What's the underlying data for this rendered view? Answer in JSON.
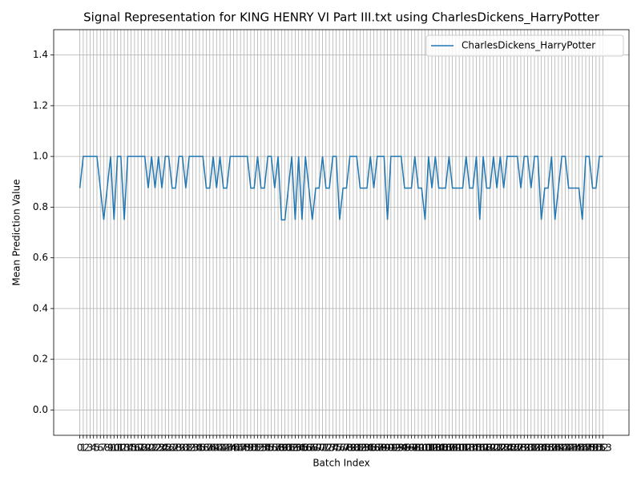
{
  "chart_data": {
    "type": "line",
    "title": "Signal Representation for KING HENRY VI Part III.txt using CharlesDickens_HarryPotter",
    "x_label": "Batch Index",
    "y_label": "Mean Prediction Value",
    "x": [
      0,
      1,
      2,
      3,
      4,
      5,
      6,
      7,
      8,
      9,
      10,
      11,
      12,
      13,
      14,
      15,
      16,
      17,
      18,
      19,
      20,
      21,
      22,
      23,
      24,
      25,
      26,
      27,
      28,
      29,
      30,
      31,
      32,
      33,
      34,
      35,
      36,
      37,
      38,
      39,
      40,
      41,
      42,
      43,
      44,
      45,
      46,
      47,
      48,
      49,
      50,
      51,
      52,
      53,
      54,
      55,
      56,
      57,
      58,
      59,
      60,
      61,
      62,
      63,
      64,
      65,
      66,
      67,
      68,
      69,
      70,
      71,
      72,
      73,
      74,
      75,
      76,
      77,
      78,
      79,
      80,
      81,
      82,
      83,
      84,
      85,
      86,
      87,
      88,
      89,
      90,
      91,
      92,
      93,
      94,
      95,
      96,
      97,
      98,
      99,
      100,
      101,
      102,
      103,
      104,
      105,
      106,
      107,
      108,
      109,
      110,
      111,
      112,
      113,
      114,
      115,
      116,
      117,
      118,
      119,
      120,
      121,
      122,
      123,
      124,
      125,
      126,
      127,
      128,
      129,
      130,
      131,
      132,
      133,
      134,
      135,
      136,
      137,
      138,
      139,
      140,
      141,
      142,
      143,
      144,
      145,
      146,
      147,
      148,
      149,
      150,
      151,
      152,
      153
    ],
    "series": [
      {
        "name": "CharlesDickens_HarryPotter",
        "color": "#1f77b4",
        "values": [
          0.875,
          1,
          1,
          1,
          1,
          1,
          0.875,
          0.75,
          0.875,
          1,
          0.75,
          1,
          1,
          0.75,
          1,
          1,
          1,
          1,
          1,
          1,
          0.875,
          1,
          0.875,
          1,
          0.875,
          1,
          1,
          0.875,
          0.875,
          1,
          1,
          0.875,
          1,
          1,
          1,
          1,
          1,
          0.875,
          0.875,
          1,
          0.875,
          1,
          0.875,
          0.875,
          1,
          1,
          1,
          1,
          1,
          1,
          0.875,
          0.875,
          1,
          0.875,
          0.875,
          1,
          1,
          0.875,
          1,
          0.75,
          0.75,
          0.875,
          1,
          0.75,
          1,
          0.75,
          1,
          0.875,
          0.75,
          0.875,
          0.875,
          1,
          0.875,
          0.875,
          1,
          1,
          0.75,
          0.875,
          0.875,
          1,
          1,
          1,
          0.875,
          0.875,
          0.875,
          1,
          0.875,
          1,
          1,
          1,
          0.75,
          1,
          1,
          1,
          1,
          0.875,
          0.875,
          0.875,
          1,
          0.875,
          0.875,
          0.75,
          1,
          0.875,
          1,
          0.875,
          0.875,
          0.875,
          1,
          0.875,
          0.875,
          0.875,
          0.875,
          1,
          0.875,
          0.875,
          1,
          0.75,
          1,
          0.875,
          0.875,
          1,
          0.875,
          1,
          0.875,
          1,
          1,
          1,
          1,
          0.875,
          1,
          1,
          0.875,
          1,
          1,
          0.75,
          0.875,
          0.875,
          1,
          0.75,
          0.875,
          1,
          1,
          0.875,
          0.875,
          0.875,
          0.875,
          0.75,
          1,
          1,
          0.875,
          0.875,
          1,
          1
        ]
      }
    ],
    "xlim": [
      -7.65,
      160.65
    ],
    "xticks": [
      0,
      1,
      2,
      3,
      4,
      5,
      6,
      7,
      8,
      9,
      10,
      11,
      12,
      13,
      14,
      15,
      16,
      17,
      18,
      19,
      20,
      21,
      22,
      23,
      24,
      25,
      26,
      27,
      28,
      29,
      30,
      31,
      32,
      33,
      34,
      35,
      36,
      37,
      38,
      39,
      40,
      41,
      42,
      43,
      44,
      45,
      46,
      47,
      48,
      49,
      50,
      51,
      52,
      53,
      54,
      55,
      56,
      57,
      58,
      59,
      60,
      61,
      62,
      63,
      64,
      65,
      66,
      67,
      68,
      69,
      70,
      71,
      72,
      73,
      74,
      75,
      76,
      77,
      78,
      79,
      80,
      81,
      82,
      83,
      84,
      85,
      86,
      87,
      88,
      89,
      90,
      91,
      92,
      93,
      94,
      95,
      96,
      97,
      98,
      99,
      100,
      101,
      102,
      103,
      104,
      105,
      106,
      107,
      108,
      109,
      110,
      111,
      112,
      113,
      114,
      115,
      116,
      117,
      118,
      119,
      120,
      121,
      122,
      123,
      124,
      125,
      126,
      127,
      128,
      129,
      130,
      131,
      132,
      133,
      134,
      135,
      136,
      137,
      138,
      139,
      140,
      141,
      142,
      143,
      144,
      145,
      146,
      147,
      148,
      149,
      150,
      151,
      152,
      153
    ],
    "ylim": [
      -0.1,
      1.5
    ],
    "yticks": [
      {
        "value": 0,
        "label": "0.0"
      },
      0.2,
      0.4,
      0.6,
      0.8,
      {
        "value": 1,
        "label": "1.0"
      },
      1.2,
      1.4
    ],
    "grid": true,
    "legend": "upper right"
  }
}
